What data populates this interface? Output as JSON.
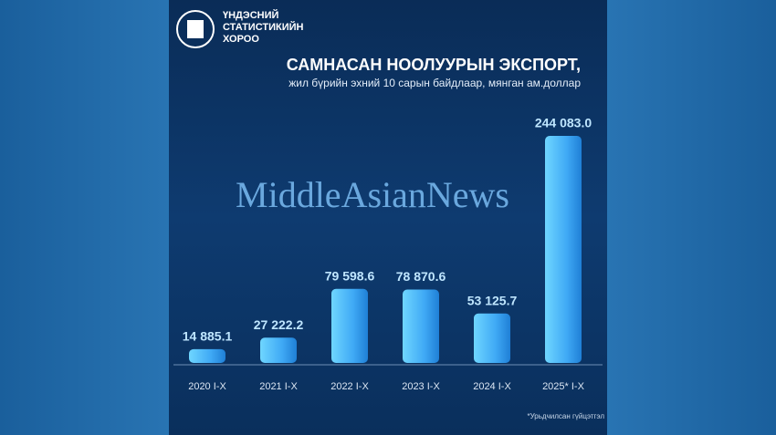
{
  "logo_text": [
    "ҮНДЭСНИЙ",
    "СТАТИСТИКИЙН",
    "ХОРОО"
  ],
  "watermark": "MiddleAsianNews",
  "footnote": "*Урьдчилсан гүйцэтгэл",
  "chart_data": {
    "type": "bar",
    "title": "САМНАСАН НООЛУУРЫН ЭКСПОРТ,",
    "subtitle": "жил бүрийн эхний 10 сарын байдлаар, мянган ам.доллар",
    "categories": [
      "2020 I-X",
      "2021 I-X",
      "2022 I-X",
      "2023 I-X",
      "2024 I-X",
      "2025* I-X"
    ],
    "values": [
      14885.1,
      27222.2,
      79598.6,
      78870.6,
      53125.7,
      244083.0
    ],
    "value_labels": [
      "14 885.1",
      "27 222.2",
      "79 598.6",
      "78 870.6",
      "53 125.7",
      "244 083.0"
    ],
    "color": "#3fa9f5"
  }
}
